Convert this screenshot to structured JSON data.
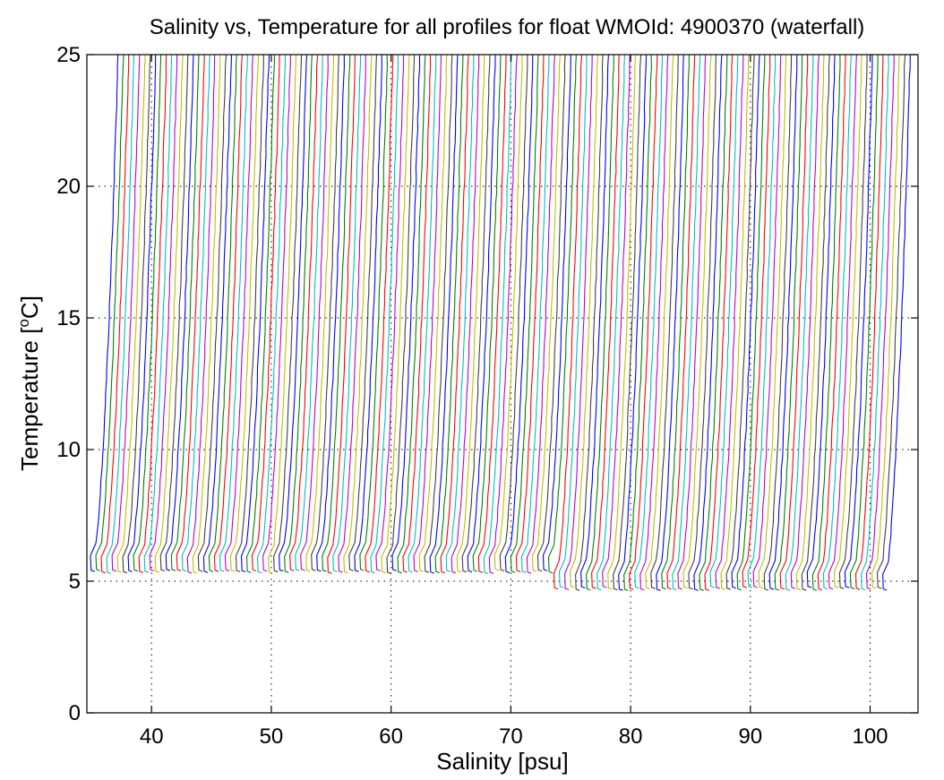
{
  "chart_data": {
    "type": "line",
    "title": "Salinity vs, Temperature for all profiles for float WMOId: 4900370 (waterfall)",
    "xlabel": "Salinity [psu]",
    "ylabel_prefix": "Temperature [",
    "ylabel_sup": "o",
    "ylabel_suffix": "C]",
    "xlim": [
      34.6,
      104
    ],
    "ylim": [
      0,
      25
    ],
    "x_ticks": [
      "40",
      "50",
      "60",
      "70",
      "80",
      "90",
      "100"
    ],
    "y_ticks": [
      "0",
      "5",
      "10",
      "15",
      "20",
      "25"
    ],
    "grid": "dotted",
    "series_colors": [
      "#0000ff",
      "#008000",
      "#ff0000",
      "#00bfbf",
      "#bf00bf",
      "#bfbf00",
      "#404040"
    ],
    "waterfall": {
      "profile_count": 148,
      "first_bottom_salinity": 34.9,
      "last_bottom_salinity": 101.3,
      "salinity_offset_per_profile": 0.45,
      "surface_temperature": 25,
      "bottom_temperature_early_profiles": 5.35,
      "bottom_temperature_late_profiles": 4.7,
      "salinity_increase_bottom_to_surface": 2.3
    }
  }
}
